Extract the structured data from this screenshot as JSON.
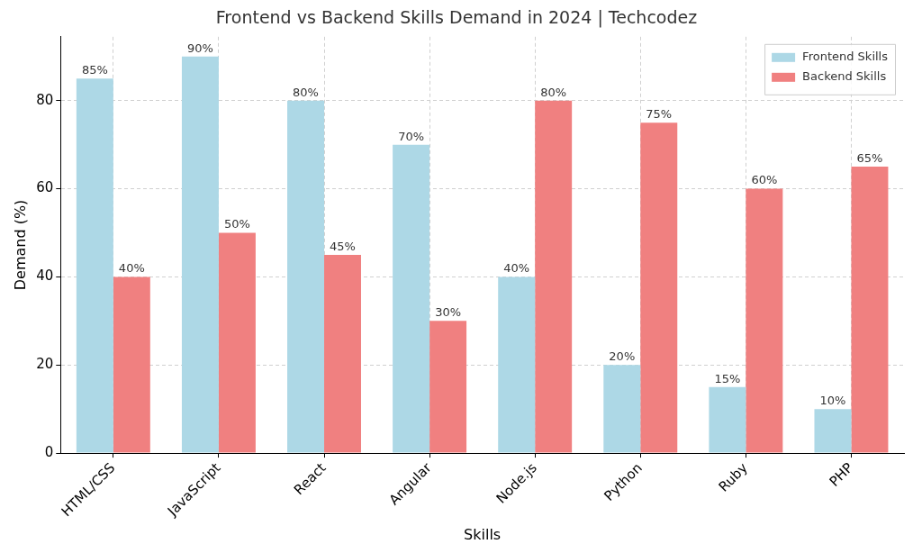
{
  "chart_data": {
    "type": "bar",
    "title": "Frontend vs Backend Skills Demand in 2024 | Techcodez",
    "x_label": "Skills",
    "y_label": "Demand (%)",
    "categories": [
      "HTML/CSS",
      "JavaScript",
      "React",
      "Angular",
      "Node.js",
      "Python",
      "Ruby",
      "PHP"
    ],
    "series": [
      {
        "name": "Frontend Skills",
        "color": "#add8e6",
        "values": [
          85,
          90,
          80,
          70,
          40,
          20,
          15,
          10
        ],
        "value_labels": [
          "85%",
          "90%",
          "80%",
          "70%",
          "40%",
          "20%",
          "15%",
          "10%"
        ]
      },
      {
        "name": "Backend Skills",
        "color": "#f08080",
        "values": [
          40,
          50,
          45,
          30,
          80,
          75,
          60,
          65
        ],
        "value_labels": [
          "40%",
          "50%",
          "45%",
          "30%",
          "80%",
          "75%",
          "60%",
          "65%"
        ]
      }
    ],
    "ylim": [
      0,
      94.5
    ],
    "yticks": [
      0,
      20,
      40,
      60,
      80
    ],
    "grid": true,
    "legend": "upper right",
    "data_labels": true
  }
}
